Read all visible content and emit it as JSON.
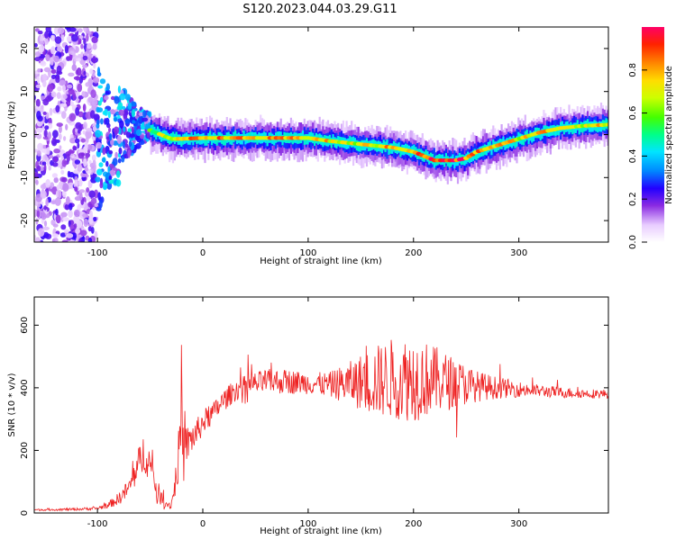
{
  "title": "S120.2023.044.03.29.G11",
  "chart_data": [
    {
      "type": "heatmap",
      "xlabel": "Height of straight line (km)",
      "ylabel": "Frequency (Hz)",
      "xlim": [
        -160,
        385
      ],
      "ylim": [
        -25,
        25
      ],
      "x_ticks": [
        -100,
        0,
        100,
        200,
        300
      ],
      "y_ticks": [
        -20,
        -10,
        0,
        10,
        20
      ],
      "colorbar": {
        "label": "Normalized spectral amplitude",
        "ticks": [
          "0.0",
          "0.2",
          "0.4",
          "0.6",
          "0.8"
        ],
        "range": [
          0,
          1
        ]
      },
      "ridge": {
        "x": [
          -50,
          -40,
          -30,
          -20,
          0,
          20,
          40,
          60,
          80,
          100,
          120,
          140,
          160,
          180,
          200,
          210,
          220,
          240,
          250,
          260,
          280,
          300,
          320,
          340,
          360,
          385
        ],
        "y": [
          1,
          0,
          -1,
          -1,
          -0.8,
          -0.8,
          -0.8,
          -0.8,
          -0.8,
          -0.8,
          -1.5,
          -2,
          -2.5,
          -3,
          -4,
          -5,
          -6,
          -6,
          -5.5,
          -4,
          -2.5,
          -1,
          0.5,
          1.5,
          2,
          2.3
        ],
        "amplitude": [
          0.6,
          0.7,
          0.8,
          0.85,
          0.9,
          0.9,
          0.85,
          0.85,
          0.85,
          0.85,
          0.8,
          0.75,
          0.8,
          0.85,
          0.9,
          0.95,
          1.0,
          1.0,
          0.95,
          0.9,
          0.85,
          0.8,
          0.85,
          0.85,
          0.8,
          0.8
        ]
      }
    },
    {
      "type": "line",
      "xlabel": "Height of straight line (km)",
      "ylabel": "SNR (10 * v/v)",
      "xlim": [
        -160,
        385
      ],
      "ylim": [
        0,
        690
      ],
      "x_ticks": [
        -100,
        0,
        100,
        200,
        300
      ],
      "y_ticks": [
        0,
        200,
        400,
        600
      ],
      "series": [
        {
          "color": "#ee2222",
          "x": [
            -160,
            -120,
            -100,
            -90,
            -80,
            -70,
            -65,
            -60,
            -55,
            -50,
            -45,
            -40,
            -35,
            -30,
            -25,
            -22,
            -20,
            -18,
            -15,
            -10,
            -5,
            0,
            10,
            20,
            30,
            40,
            60,
            80,
            100,
            120,
            140,
            160,
            180,
            200,
            220,
            240,
            260,
            280,
            300,
            320,
            340,
            360,
            385
          ],
          "y": [
            10,
            12,
            15,
            25,
            45,
            80,
            120,
            160,
            200,
            150,
            90,
            50,
            30,
            25,
            120,
            220,
            290,
            180,
            220,
            240,
            260,
            290,
            320,
            360,
            390,
            405,
            420,
            420,
            415,
            410,
            415,
            420,
            430,
            430,
            425,
            415,
            405,
            400,
            395,
            390,
            385,
            382,
            380
          ],
          "noise": [
            3,
            4,
            5,
            10,
            20,
            30,
            45,
            60,
            70,
            60,
            40,
            25,
            15,
            12,
            60,
            90,
            110,
            90,
            60,
            50,
            45,
            40,
            35,
            35,
            35,
            35,
            40,
            40,
            35,
            40,
            70,
            110,
            130,
            140,
            110,
            80,
            50,
            35,
            25,
            20,
            18,
            15,
            15
          ]
        }
      ]
    }
  ]
}
